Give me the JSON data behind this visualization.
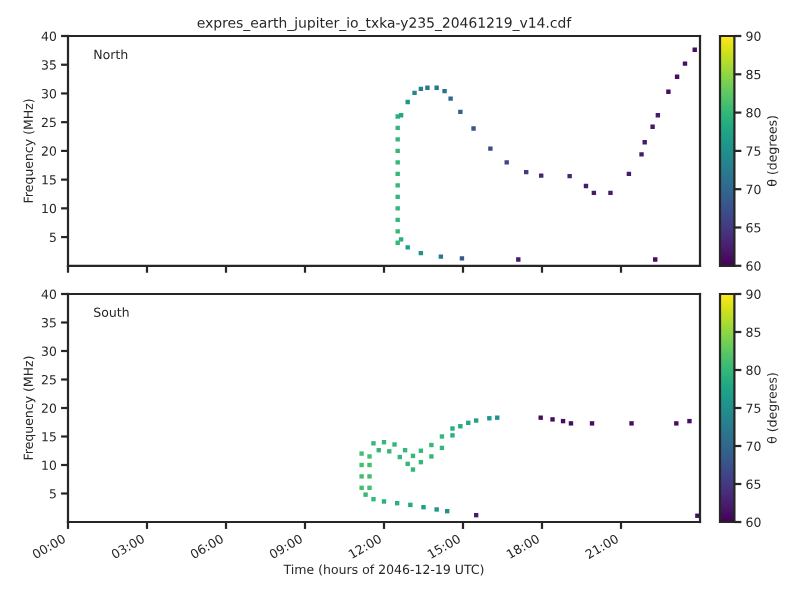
{
  "chart_data": [
    {
      "type": "scatter",
      "title": "expres_earth_jupiter_io_txka-y235_20461219_v14.cdf",
      "ylabel": "Frequency (MHz)",
      "clabel": "θ (degrees)",
      "annotations": [
        "North"
      ],
      "marker": "square",
      "tick_labels": "y",
      "x": [
        12.52,
        12.52,
        12.52,
        12.52,
        12.52,
        12.52,
        12.52,
        12.52,
        12.52,
        12.52,
        12.52,
        12.52,
        12.65,
        12.9,
        13.4,
        14.16,
        14.96,
        17.1,
        22.3,
        12.65,
        12.9,
        13.16,
        13.4,
        13.65,
        14.0,
        14.3,
        14.53,
        14.9,
        15.4,
        16.04,
        16.66,
        17.4,
        17.97,
        19.05,
        19.67,
        19.97,
        20.6,
        21.3,
        21.78,
        21.9,
        22.2,
        22.4,
        22.8,
        23.13,
        23.43,
        23.8
      ],
      "values": [
        4,
        6,
        8,
        10,
        12,
        14,
        16,
        18,
        20,
        22,
        24,
        26,
        4.6,
        3.2,
        2.2,
        1.6,
        1.3,
        1.1,
        1.1,
        26.2,
        28.5,
        30.1,
        30.8,
        31.0,
        31.0,
        30.4,
        29.1,
        26.8,
        23.9,
        20.4,
        18.0,
        16.3,
        15.7,
        15.6,
        13.9,
        12.7,
        12.7,
        16.0,
        19.4,
        21.5,
        24.2,
        26.2,
        30.3,
        32.9,
        35.2,
        37.6
      ],
      "cvalues": [
        80,
        80,
        80,
        80,
        80,
        80,
        80,
        80,
        80,
        80,
        80,
        79,
        79,
        77,
        75,
        72,
        68,
        62,
        61,
        78,
        76,
        74,
        73,
        72,
        72,
        71,
        70,
        69,
        68,
        67,
        66,
        65,
        63,
        63,
        62,
        62,
        62,
        62,
        62,
        62,
        62,
        62,
        61,
        61,
        61,
        61
      ],
      "xlim": [
        0,
        24
      ],
      "ylim": [
        0,
        40
      ],
      "yticks": [
        5,
        10,
        15,
        20,
        25,
        30,
        35,
        40
      ],
      "xticks": [
        {
          "value": 0,
          "label": null
        },
        {
          "value": 3,
          "label": null
        },
        {
          "value": 6,
          "label": null
        },
        {
          "value": 9,
          "label": null
        },
        {
          "value": 12,
          "label": null
        },
        {
          "value": 15,
          "label": null
        },
        {
          "value": 18,
          "label": null
        },
        {
          "value": 21,
          "label": null
        }
      ],
      "clim": [
        60,
        90
      ],
      "cticks": [
        60,
        65,
        70,
        75,
        80,
        85,
        90
      ]
    },
    {
      "type": "scatter",
      "xlabel": "Time (hours of 2046-12-19 UTC)",
      "ylabel": "Frequency (MHz)",
      "clabel": "θ (degrees)",
      "annotations": [
        "South"
      ],
      "marker": "square",
      "x": [
        11.15,
        11.15,
        11.15,
        11.15,
        11.45,
        11.45,
        11.45,
        11.45,
        11.6,
        12.0,
        12.4,
        12.8,
        13.1,
        11.8,
        12.2,
        12.6,
        12.9,
        13.1,
        13.4,
        13.4,
        13.8,
        13.8,
        14.2,
        14.2,
        14.6,
        14.6,
        14.9,
        15.2,
        15.5,
        16.0,
        16.3,
        11.3,
        11.6,
        12.0,
        12.5,
        13.0,
        13.5,
        14.0,
        14.4,
        15.5,
        23.9,
        17.95,
        18.4,
        18.8,
        19.1,
        19.9,
        21.4,
        23.1,
        23.6
      ],
      "values": [
        6,
        8,
        10,
        12,
        6,
        8,
        10,
        11.5,
        13.8,
        14.0,
        13.6,
        12.6,
        11.6,
        12.6,
        12.4,
        11.4,
        10.2,
        9.2,
        10.5,
        12.5,
        11.5,
        13.5,
        13.0,
        15.0,
        15.2,
        16.4,
        16.8,
        17.4,
        17.8,
        18.2,
        18.3,
        4.8,
        4.0,
        3.6,
        3.3,
        3.0,
        2.6,
        2.2,
        1.9,
        1.2,
        1.1,
        18.3,
        18.0,
        17.7,
        17.3,
        17.3,
        17.3,
        17.3,
        17.7
      ],
      "cvalues": [
        81,
        81,
        81,
        81,
        81,
        81,
        81,
        81,
        80,
        80,
        80,
        80,
        80,
        80,
        80,
        80,
        80,
        80,
        80,
        80,
        80,
        80,
        80,
        80,
        79,
        79,
        78,
        78,
        77,
        76,
        75,
        80,
        80,
        79,
        79,
        78,
        77,
        76,
        75,
        62,
        61,
        61,
        61,
        61,
        61,
        61,
        61,
        61,
        61
      ],
      "xlim": [
        0,
        24
      ],
      "ylim": [
        0,
        40
      ],
      "yticks": [
        5,
        10,
        15,
        20,
        25,
        30,
        35,
        40
      ],
      "xticks": [
        {
          "value": 0,
          "label": "00:00"
        },
        {
          "value": 3,
          "label": "03:00"
        },
        {
          "value": 6,
          "label": "06:00"
        },
        {
          "value": 9,
          "label": "09:00"
        },
        {
          "value": 12,
          "label": "12:00"
        },
        {
          "value": 15,
          "label": "15:00"
        },
        {
          "value": 18,
          "label": "18:00"
        },
        {
          "value": 21,
          "label": "21:00"
        }
      ],
      "clim": [
        60,
        90
      ],
      "cticks": [
        60,
        65,
        70,
        75,
        80,
        85,
        90
      ]
    }
  ]
}
